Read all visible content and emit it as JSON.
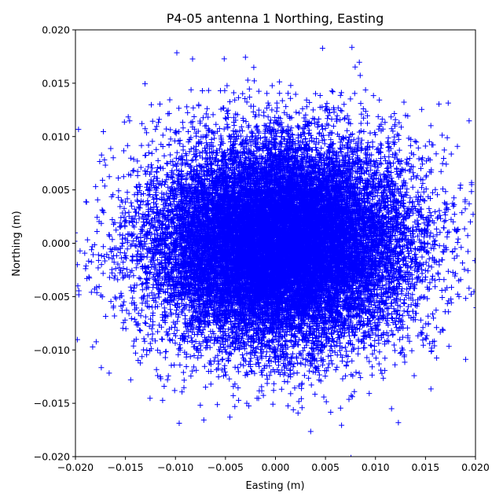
{
  "chart_data": {
    "type": "scatter",
    "title": "P4-05 antenna 1 Northing, Easting",
    "xlabel": "Easting (m)",
    "ylabel": "Northing (m)",
    "xlim": [
      -0.02,
      0.02
    ],
    "ylim": [
      -0.02,
      0.02
    ],
    "xticks": [
      "−0.020",
      "−0.015",
      "−0.010",
      "−0.005",
      "0.000",
      "0.005",
      "0.010",
      "0.015",
      "0.020"
    ],
    "yticks": [
      "−0.020",
      "−0.015",
      "−0.010",
      "−0.005",
      "0.000",
      "0.005",
      "0.010",
      "0.015",
      "0.020"
    ],
    "grid": false,
    "marker": "+",
    "marker_color": "#0000ff",
    "distribution": {
      "center_x": 0.0005,
      "center_y": 0.0,
      "sigma_x": 0.0065,
      "sigma_y": 0.0048,
      "approx_point_count": 20000
    }
  }
}
